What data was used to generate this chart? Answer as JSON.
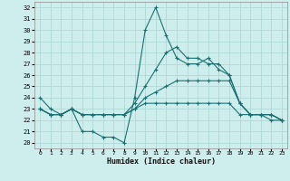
{
  "xlabel": "Humidex (Indice chaleur)",
  "background_color": "#ceeeed",
  "grid_color": "#aed8d6",
  "line_color": "#1a7070",
  "xlim": [
    -0.5,
    23.5
  ],
  "ylim": [
    19.5,
    32.5
  ],
  "yticks": [
    20,
    21,
    22,
    23,
    24,
    25,
    26,
    27,
    28,
    29,
    30,
    31,
    32
  ],
  "xticks": [
    0,
    1,
    2,
    3,
    4,
    5,
    6,
    7,
    8,
    9,
    10,
    11,
    12,
    13,
    14,
    15,
    16,
    17,
    18,
    19,
    20,
    21,
    22,
    23
  ],
  "series": [
    {
      "x": [
        0,
        1,
        2,
        3,
        4,
        5,
        6,
        7,
        8,
        9,
        10,
        11,
        12,
        13,
        14,
        15,
        16,
        17,
        18,
        19,
        20,
        21,
        22,
        23
      ],
      "y": [
        24.0,
        23.0,
        22.5,
        23.0,
        21.0,
        21.0,
        20.5,
        20.5,
        20.0,
        24.0,
        30.0,
        32.0,
        29.5,
        27.5,
        27.0,
        27.0,
        27.5,
        26.5,
        26.0,
        23.5,
        22.5,
        22.5,
        22.0,
        22.0
      ]
    },
    {
      "x": [
        0,
        1,
        2,
        3,
        4,
        5,
        6,
        7,
        8,
        9,
        10,
        11,
        12,
        13,
        14,
        15,
        16,
        17,
        18,
        19,
        20,
        21,
        22,
        23
      ],
      "y": [
        23.0,
        22.5,
        22.5,
        23.0,
        22.5,
        22.5,
        22.5,
        22.5,
        22.5,
        23.0,
        23.5,
        23.5,
        23.5,
        23.5,
        23.5,
        23.5,
        23.5,
        23.5,
        23.5,
        22.5,
        22.5,
        22.5,
        22.5,
        22.0
      ]
    },
    {
      "x": [
        0,
        1,
        2,
        3,
        4,
        5,
        6,
        7,
        8,
        9,
        10,
        11,
        12,
        13,
        14,
        15,
        16,
        17,
        18,
        19,
        20,
        21,
        22,
        23
      ],
      "y": [
        23.0,
        22.5,
        22.5,
        23.0,
        22.5,
        22.5,
        22.5,
        22.5,
        22.5,
        23.0,
        24.0,
        24.5,
        25.0,
        25.5,
        25.5,
        25.5,
        25.5,
        25.5,
        25.5,
        23.5,
        22.5,
        22.5,
        22.5,
        22.0
      ]
    },
    {
      "x": [
        0,
        1,
        2,
        3,
        4,
        5,
        6,
        7,
        8,
        9,
        10,
        11,
        12,
        13,
        14,
        15,
        16,
        17,
        18,
        19,
        20,
        21,
        22,
        23
      ],
      "y": [
        23.0,
        22.5,
        22.5,
        23.0,
        22.5,
        22.5,
        22.5,
        22.5,
        22.5,
        23.5,
        25.0,
        26.5,
        28.0,
        28.5,
        27.5,
        27.5,
        27.0,
        27.0,
        26.0,
        23.5,
        22.5,
        22.5,
        22.5,
        22.0
      ]
    }
  ]
}
